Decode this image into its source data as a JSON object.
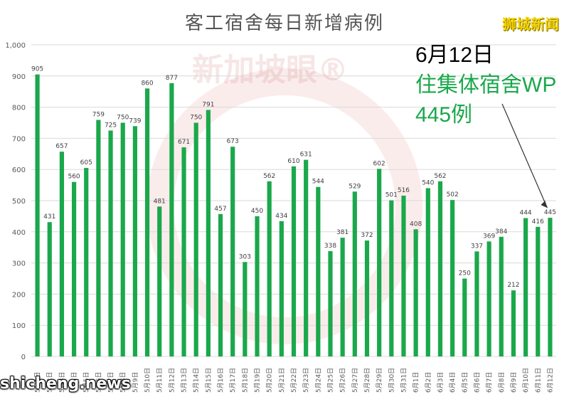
{
  "header": {
    "title": "客工宿舍每日新增病例",
    "brand": "狮城新闻"
  },
  "annotation": {
    "date": "6月12日",
    "line1": "住集体宿舍WP",
    "line2": "445例"
  },
  "watermark": {
    "bottom_left": "shicheng.news",
    "center": "新加坡眼®"
  },
  "colors": {
    "bar": "#1aa84b",
    "grid": "#d9d9d9",
    "axis_text": "#595959",
    "annotation": "#1aa84b"
  },
  "chart_data": {
    "type": "bar",
    "title": "客工宿舍每日新增病例",
    "xlabel": "",
    "ylabel": "",
    "ylim": [
      0,
      1000
    ],
    "yticks": [
      "0",
      "100",
      "200",
      "300",
      "400",
      "500",
      "600",
      "700",
      "800",
      "900",
      "1,000"
    ],
    "grid": true,
    "categories": [
      "5月1日",
      "5月2日",
      "5月3日",
      "5月4日",
      "5月5日",
      "5月6日",
      "5月7日",
      "5月8日",
      "5月9日",
      "5月10日",
      "5月11日",
      "5月12日",
      "5月13日",
      "5月14日",
      "5月15日",
      "5月16日",
      "5月17日",
      "5月18日",
      "5月19日",
      "5月20日",
      "5月21日",
      "5月22日",
      "5月23日",
      "5月24日",
      "5月25日",
      "5月26日",
      "5月27日",
      "5月28日",
      "5月29日",
      "5月30日",
      "5月31日",
      "6月1日",
      "6月2日",
      "6月3日",
      "6月4日",
      "6月5日",
      "6月6日",
      "6月7日",
      "6月8日",
      "6月9日",
      "6月10日",
      "6月11日",
      "6月12日"
    ],
    "values": [
      905,
      431,
      657,
      560,
      605,
      759,
      725,
      750,
      739,
      860,
      481,
      877,
      671,
      750,
      791,
      457,
      673,
      303,
      450,
      562,
      434,
      610,
      631,
      544,
      338,
      381,
      529,
      372,
      602,
      501,
      516,
      408,
      540,
      562,
      502,
      250,
      337,
      369,
      384,
      212,
      444,
      416,
      445
    ]
  }
}
